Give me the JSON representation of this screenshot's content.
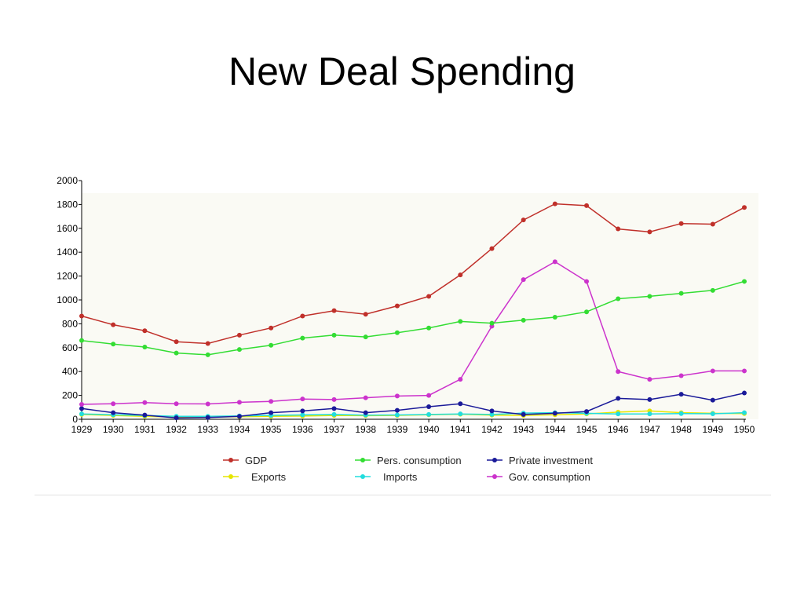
{
  "slide": {
    "title": "New Deal Spending"
  },
  "chart_data": {
    "type": "line",
    "title": "",
    "xlabel": "",
    "ylabel": "",
    "ylim": [
      0,
      2000
    ],
    "yticks": [
      0,
      200,
      400,
      600,
      800,
      1000,
      1200,
      1400,
      1600,
      1800,
      2000
    ],
    "grid": false,
    "legend_position": "bottom",
    "x": [
      "1929",
      "1930",
      "1931",
      "1932",
      "1933",
      "1934",
      "1935",
      "1936",
      "1937",
      "1938",
      "1939",
      "1940",
      "1941",
      "1942",
      "1943",
      "1944",
      "1945",
      "1946",
      "1947",
      "1948",
      "1949",
      "1950"
    ],
    "series": [
      {
        "name": "GDP",
        "color": "#c0302a",
        "values": [
          865,
          792,
          742,
          650,
          635,
          705,
          765,
          865,
          910,
          880,
          950,
          1030,
          1210,
          1430,
          1670,
          1805,
          1790,
          1595,
          1570,
          1640,
          1635,
          1775
        ]
      },
      {
        "name": "Pers. consumption",
        "color": "#33dd33",
        "values": [
          660,
          630,
          605,
          555,
          540,
          585,
          620,
          680,
          705,
          690,
          725,
          765,
          820,
          805,
          830,
          855,
          900,
          1010,
          1030,
          1055,
          1080,
          1155
        ]
      },
      {
        "name": "Private investment",
        "color": "#1a1a99",
        "values": [
          90,
          55,
          35,
          12,
          15,
          25,
          55,
          70,
          90,
          55,
          75,
          105,
          130,
          70,
          40,
          50,
          65,
          175,
          165,
          210,
          160,
          220
        ]
      },
      {
        "name": "Exports",
        "color": "#e6e600",
        "values": [
          40,
          32,
          25,
          18,
          18,
          22,
          25,
          27,
          32,
          30,
          32,
          38,
          42,
          35,
          32,
          38,
          45,
          60,
          70,
          55,
          50,
          48
        ]
      },
      {
        "name": "Imports",
        "color": "#22dddd",
        "values": [
          45,
          38,
          32,
          25,
          25,
          28,
          33,
          37,
          40,
          35,
          36,
          40,
          45,
          40,
          52,
          55,
          50,
          45,
          45,
          48,
          46,
          55
        ]
      },
      {
        "name": "Gov. consumption",
        "color": "#cc33cc",
        "values": [
          125,
          130,
          140,
          130,
          128,
          142,
          150,
          170,
          165,
          180,
          195,
          200,
          335,
          780,
          1170,
          1320,
          1155,
          400,
          335,
          365,
          405,
          405
        ]
      }
    ]
  }
}
